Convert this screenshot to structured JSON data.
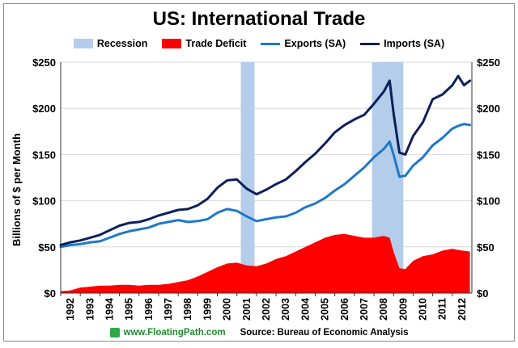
{
  "colors": {
    "recession": "#b4cdea",
    "deficit": "#ff0000",
    "exports": "#1f78c8",
    "imports": "#0d1f5c",
    "grid": "#d9d9d9",
    "site": "#1f8a2e"
  },
  "footer": {
    "site": "www.FloatingPath.com",
    "source": "Source: Bureau of Economic Analysis"
  },
  "chart_data": {
    "type": "line",
    "title": "US: International Trade",
    "ylabel": "Billions of $ per Month",
    "xlabel": "",
    "ylim": [
      0,
      250
    ],
    "yticks": [
      0,
      50,
      100,
      150,
      200,
      250
    ],
    "ytick_labels": [
      "$0",
      "$50",
      "$100",
      "$150",
      "$200",
      "$250"
    ],
    "xlim": [
      1992,
      2013
    ],
    "xticks": [
      1992,
      1993,
      1994,
      1995,
      1996,
      1997,
      1998,
      1999,
      2000,
      2001,
      2002,
      2003,
      2004,
      2005,
      2006,
      2007,
      2008,
      2009,
      2010,
      2011,
      2012
    ],
    "xtick_labels": [
      "1992",
      "1993",
      "1994",
      "1995",
      "1996",
      "1997",
      "1998",
      "1999",
      "2000",
      "2001",
      "2002",
      "2003",
      "2004",
      "2005",
      "2006",
      "2007",
      "2008",
      "2009",
      "2010",
      "2011",
      "2012"
    ],
    "secondary_y_axis": true,
    "grid": "horizontal",
    "legend_position": "top",
    "recessions": [
      {
        "name": "Recession",
        "start": 2001.2,
        "end": 2001.9
      },
      {
        "name": "Recession",
        "start": 2007.9,
        "end": 2009.5
      }
    ],
    "series": [
      {
        "name": "Trade Deficit",
        "type": "area",
        "x": [
          1992.0,
          1992.5,
          1993.0,
          1993.5,
          1994.0,
          1994.5,
          1995.0,
          1995.5,
          1996.0,
          1996.5,
          1997.0,
          1997.5,
          1998.0,
          1998.5,
          1999.0,
          1999.5,
          2000.0,
          2000.5,
          2001.0,
          2001.5,
          2002.0,
          2002.5,
          2003.0,
          2003.5,
          2004.0,
          2004.5,
          2005.0,
          2005.5,
          2006.0,
          2006.5,
          2007.0,
          2007.5,
          2008.0,
          2008.5,
          2008.8,
          2009.0,
          2009.3,
          2009.6,
          2010.0,
          2010.5,
          2011.0,
          2011.5,
          2012.0,
          2012.5,
          2012.9
        ],
        "values": [
          2,
          3,
          6,
          7,
          8,
          8,
          9,
          9,
          8,
          9,
          9,
          10,
          12,
          14,
          18,
          23,
          28,
          32,
          33,
          30,
          29,
          32,
          37,
          40,
          45,
          50,
          55,
          60,
          63,
          64,
          62,
          60,
          60,
          62,
          60,
          45,
          27,
          26,
          35,
          40,
          42,
          46,
          48,
          46,
          45
        ]
      },
      {
        "name": "Exports (SA)",
        "type": "line",
        "x": [
          1992.0,
          1992.5,
          1993.0,
          1993.5,
          1994.0,
          1994.5,
          1995.0,
          1995.5,
          1996.0,
          1996.5,
          1997.0,
          1997.5,
          1998.0,
          1998.5,
          1999.0,
          1999.5,
          2000.0,
          2000.5,
          2001.0,
          2001.5,
          2002.0,
          2002.5,
          2003.0,
          2003.5,
          2004.0,
          2004.5,
          2005.0,
          2005.5,
          2006.0,
          2006.5,
          2007.0,
          2007.5,
          2008.0,
          2008.5,
          2008.8,
          2009.0,
          2009.3,
          2009.6,
          2010.0,
          2010.5,
          2011.0,
          2011.5,
          2012.0,
          2012.3,
          2012.6,
          2012.9
        ],
        "values": [
          50,
          52,
          53,
          55,
          56,
          60,
          64,
          67,
          69,
          71,
          75,
          77,
          79,
          77,
          78,
          80,
          87,
          91,
          89,
          83,
          78,
          80,
          82,
          83,
          87,
          93,
          97,
          103,
          111,
          118,
          127,
          136,
          147,
          156,
          164,
          150,
          126,
          127,
          138,
          147,
          160,
          168,
          178,
          181,
          183,
          182
        ]
      },
      {
        "name": "Imports (SA)",
        "type": "line",
        "x": [
          1992.0,
          1992.5,
          1993.0,
          1993.5,
          1994.0,
          1994.5,
          1995.0,
          1995.5,
          1996.0,
          1996.5,
          1997.0,
          1997.5,
          1998.0,
          1998.5,
          1999.0,
          1999.5,
          2000.0,
          2000.5,
          2001.0,
          2001.5,
          2002.0,
          2002.5,
          2003.0,
          2003.5,
          2004.0,
          2004.5,
          2005.0,
          2005.5,
          2006.0,
          2006.5,
          2007.0,
          2007.5,
          2008.0,
          2008.5,
          2008.8,
          2009.0,
          2009.3,
          2009.6,
          2010.0,
          2010.5,
          2011.0,
          2011.5,
          2012.0,
          2012.3,
          2012.6,
          2012.9
        ],
        "values": [
          52,
          55,
          57,
          60,
          63,
          68,
          73,
          76,
          77,
          80,
          84,
          87,
          90,
          91,
          95,
          102,
          114,
          122,
          123,
          113,
          107,
          112,
          118,
          123,
          132,
          142,
          151,
          162,
          174,
          182,
          188,
          193,
          205,
          218,
          230,
          195,
          152,
          150,
          170,
          185,
          210,
          215,
          225,
          235,
          225,
          230
        ]
      }
    ]
  }
}
